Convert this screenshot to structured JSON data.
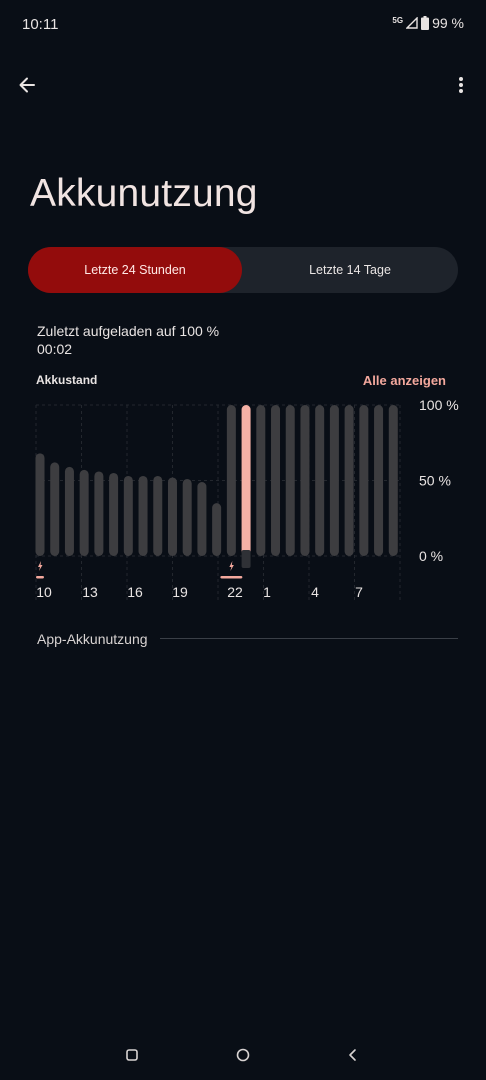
{
  "status_bar": {
    "time": "10:11",
    "network": "5G",
    "battery": "99 %"
  },
  "header": {
    "back_icon": "arrow-left-icon",
    "menu_icon": "more-vert-icon"
  },
  "page": {
    "title": "Akkunutzung"
  },
  "tabs": [
    {
      "label": "Letzte 24 Stunden",
      "selected": true
    },
    {
      "label": "Letzte 14 Tage",
      "selected": false
    }
  ],
  "last_charged": {
    "line1": "Zuletzt aufgeladen auf 100 %",
    "line2": "00:02"
  },
  "chart_section": {
    "title": "Akkustand",
    "show_all": "Alle anzeigen"
  },
  "chart_data": {
    "type": "bar",
    "title": "Akkustand",
    "y_tick_labels": [
      "100 %",
      "50 %",
      "0 %"
    ],
    "ylim": [
      0,
      100
    ],
    "x_tick_labels": [
      "10",
      "13",
      "16",
      "19",
      "22",
      "1",
      "4",
      "7"
    ],
    "values": [
      68,
      62,
      59,
      57,
      56,
      55,
      53,
      53,
      53,
      52,
      51,
      49,
      35,
      100,
      100,
      100,
      100,
      100,
      100,
      100,
      100,
      100,
      100,
      100,
      100
    ],
    "highlighted_index": 14,
    "charging_markers_at_index": [
      0,
      13
    ],
    "colors": {
      "bar": "#3d3d40",
      "highlight": "#f5b1a6",
      "charging": "#f3a89d",
      "grid": "#23272e"
    }
  },
  "app_usage": {
    "label": "App-Akkunutzung"
  },
  "nav_bar": {
    "recents_icon": "square-recents-icon",
    "home_icon": "circle-home-icon",
    "back_icon": "triangle-back-icon"
  }
}
